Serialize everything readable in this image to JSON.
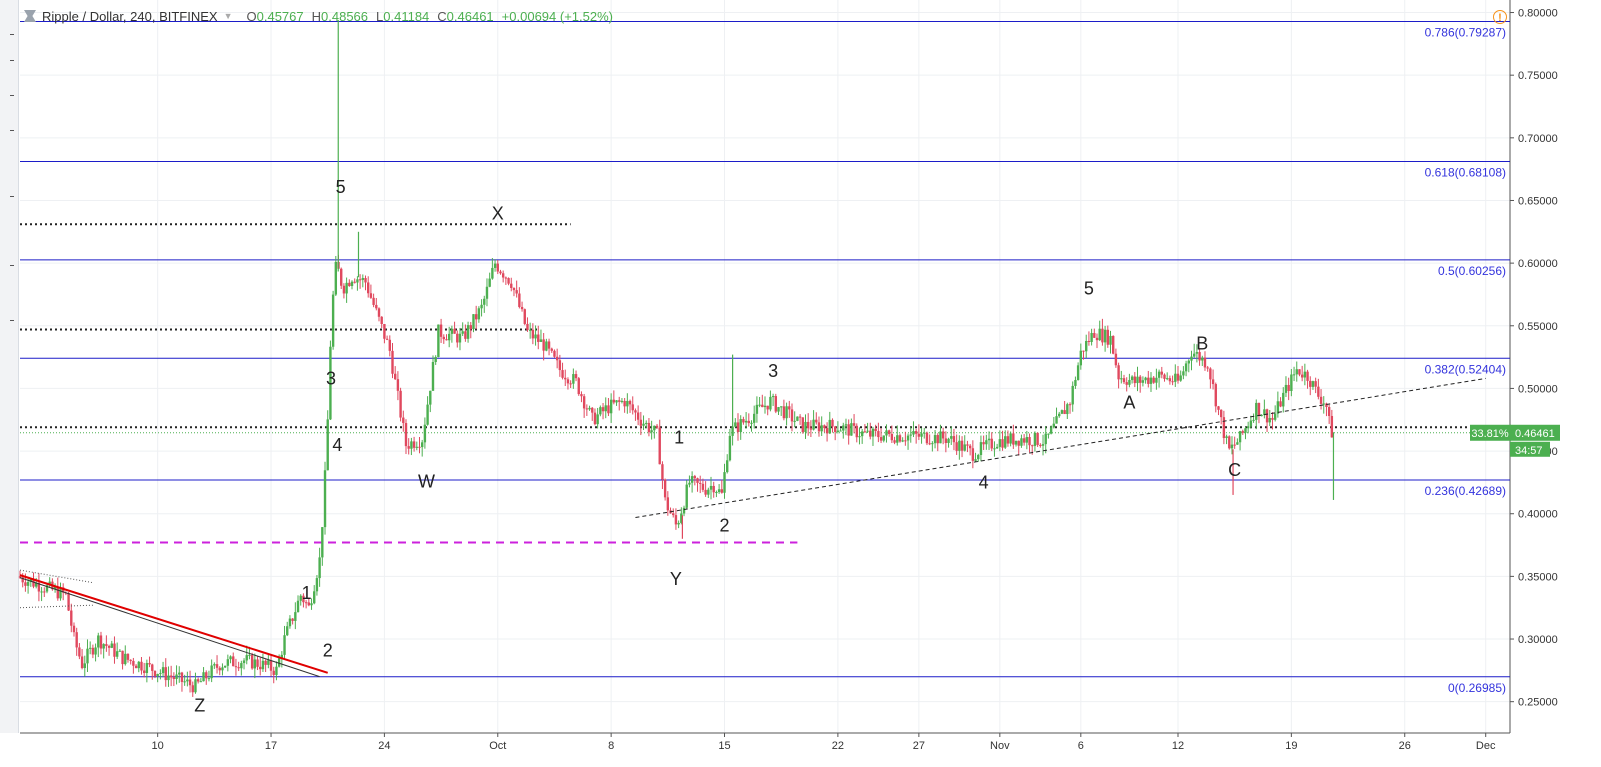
{
  "header": {
    "symbol": "Ripple / Dollar, 240, BITFINEX",
    "open_label": "O",
    "open": "0.45767",
    "high_label": "H",
    "high": "0.48566",
    "low_label": "L",
    "low": "0.41184",
    "close_label": "C",
    "close": "0.46461",
    "change": "+0.00694 (+1.52%)"
  },
  "colors": {
    "up": "#4caf50",
    "down": "#e0485e",
    "fib": "#1c1cc8",
    "accent": "#f7931a"
  },
  "chart_data": {
    "type": "candlestick",
    "ylim": [
      0.225,
      0.81
    ],
    "y_ticks": [
      "0.80000",
      "0.75000",
      "0.70000",
      "0.65000",
      "0.60000",
      "0.55000",
      "0.50000",
      "0.45000",
      "0.40000",
      "0.35000",
      "0.30000",
      "0.25000"
    ],
    "y_tick_values": [
      0.8,
      0.75,
      0.7,
      0.65,
      0.6,
      0.55,
      0.5,
      0.45,
      0.4,
      0.35,
      0.3,
      0.25
    ],
    "x_ticks": [
      "10",
      "17",
      "24",
      "Oct",
      "8",
      "15",
      "22",
      "27",
      "Nov",
      "6",
      "12",
      "19",
      "26",
      "Dec"
    ],
    "x_tick_days": [
      10,
      17,
      24,
      31,
      38,
      45,
      52,
      57,
      62,
      67,
      73,
      80,
      87,
      92
    ],
    "x_range_days": [
      1.5,
      93.5
    ],
    "fib_levels": [
      {
        "label": "0.786(0.79287)",
        "value": 0.79287
      },
      {
        "label": "0.618(0.68108)",
        "value": 0.68108
      },
      {
        "label": "0.5(0.60256)",
        "value": 0.60256
      },
      {
        "label": "0.382(0.52404)",
        "value": 0.52404
      },
      {
        "label": "0.236(0.42689)",
        "value": 0.42689
      },
      {
        "label": "0(0.26985)",
        "value": 0.26985
      }
    ],
    "dotted_levels": [
      {
        "value": 0.631,
        "from": 1.5,
        "to": 35.5
      },
      {
        "value": 0.547,
        "from": 1.5,
        "to": 33.5
      },
      {
        "value": 0.469,
        "from": 1.5,
        "to": 93.5
      }
    ],
    "magenta_level": {
      "value": 0.377,
      "from": 1.5,
      "to": 49.5
    },
    "current_price": {
      "value": 0.46461,
      "label": "0.46461",
      "pct": "33.81%",
      "timer": "34:57"
    },
    "wave_labels": [
      {
        "text": "5",
        "day": 21.3,
        "price": 0.656
      },
      {
        "text": "X",
        "day": 31,
        "price": 0.635
      },
      {
        "text": "3",
        "day": 20.7,
        "price": 0.503
      },
      {
        "text": "4",
        "day": 21.1,
        "price": 0.45
      },
      {
        "text": "W",
        "day": 26.6,
        "price": 0.421
      },
      {
        "text": "1",
        "day": 19.2,
        "price": 0.332
      },
      {
        "text": "2",
        "day": 20.5,
        "price": 0.286
      },
      {
        "text": "Z",
        "day": 12.6,
        "price": 0.242
      },
      {
        "text": "1",
        "day": 42.2,
        "price": 0.456
      },
      {
        "text": "2",
        "day": 45,
        "price": 0.386
      },
      {
        "text": "Y",
        "day": 42,
        "price": 0.343
      },
      {
        "text": "3",
        "day": 48,
        "price": 0.509
      },
      {
        "text": "4",
        "day": 61,
        "price": 0.42
      },
      {
        "text": "5",
        "day": 67.5,
        "price": 0.575
      },
      {
        "text": "A",
        "day": 70,
        "price": 0.484
      },
      {
        "text": "B",
        "day": 74.5,
        "price": 0.531
      },
      {
        "text": "C",
        "day": 76.5,
        "price": 0.43
      }
    ],
    "trendlines": [
      {
        "style": "red",
        "from": [
          1.5,
          0.351
        ],
        "to": [
          20.5,
          0.273
        ]
      },
      {
        "style": "dark",
        "from": [
          1.5,
          0.349
        ],
        "to": [
          20,
          0.27
        ]
      },
      {
        "style": "dotted-thin",
        "from": [
          1.5,
          0.355
        ],
        "to": [
          6,
          0.345
        ]
      },
      {
        "style": "dotted-thin",
        "from": [
          1.5,
          0.325
        ],
        "to": [
          6,
          0.327
        ]
      },
      {
        "style": "dashed",
        "from": [
          39.5,
          0.397
        ],
        "to": [
          92,
          0.508
        ]
      }
    ],
    "anchors": [
      [
        1.5,
        0.35
      ],
      [
        3.5,
        0.34
      ],
      [
        4.5,
        0.335
      ],
      [
        5,
        0.3
      ],
      [
        5.5,
        0.28
      ],
      [
        6.5,
        0.3
      ],
      [
        8,
        0.285
      ],
      [
        9.5,
        0.278
      ],
      [
        11,
        0.27
      ],
      [
        12.5,
        0.262
      ],
      [
        14,
        0.28
      ],
      [
        15.5,
        0.283
      ],
      [
        16.5,
        0.28
      ],
      [
        17.5,
        0.275
      ],
      [
        18,
        0.3
      ],
      [
        19,
        0.335
      ],
      [
        19.5,
        0.325
      ],
      [
        20.2,
        0.365
      ],
      [
        20.6,
        0.45
      ],
      [
        20.9,
        0.56
      ],
      [
        21.2,
        0.6
      ],
      [
        21.6,
        0.58
      ],
      [
        22.2,
        0.59
      ],
      [
        23,
        0.585
      ],
      [
        24.5,
        0.53
      ],
      [
        25.5,
        0.455
      ],
      [
        26.5,
        0.46
      ],
      [
        27.5,
        0.545
      ],
      [
        29,
        0.54
      ],
      [
        30.2,
        0.565
      ],
      [
        31,
        0.6
      ],
      [
        32,
        0.585
      ],
      [
        33,
        0.545
      ],
      [
        34,
        0.535
      ],
      [
        35,
        0.515
      ],
      [
        36,
        0.505
      ],
      [
        37,
        0.475
      ],
      [
        38,
        0.485
      ],
      [
        39,
        0.49
      ],
      [
        40,
        0.475
      ],
      [
        41,
        0.463
      ],
      [
        41.5,
        0.41
      ],
      [
        42.2,
        0.39
      ],
      [
        43,
        0.425
      ],
      [
        44,
        0.42
      ],
      [
        44.5,
        0.423
      ],
      [
        45,
        0.415
      ],
      [
        45.5,
        0.465
      ],
      [
        46.5,
        0.475
      ],
      [
        48,
        0.49
      ],
      [
        49,
        0.48
      ],
      [
        50,
        0.47
      ],
      [
        52,
        0.47
      ],
      [
        54,
        0.463
      ],
      [
        57,
        0.462
      ],
      [
        59,
        0.46
      ],
      [
        60.5,
        0.448
      ],
      [
        62,
        0.458
      ],
      [
        63.5,
        0.46
      ],
      [
        65,
        0.458
      ],
      [
        66.5,
        0.49
      ],
      [
        67.2,
        0.53
      ],
      [
        68,
        0.545
      ],
      [
        69,
        0.54
      ],
      [
        69.5,
        0.51
      ],
      [
        70.5,
        0.505
      ],
      [
        72,
        0.51
      ],
      [
        73.2,
        0.505
      ],
      [
        74,
        0.53
      ],
      [
        75,
        0.52
      ],
      [
        75.7,
        0.48
      ],
      [
        76.3,
        0.45
      ],
      [
        77,
        0.46
      ],
      [
        78,
        0.485
      ],
      [
        79,
        0.475
      ],
      [
        79.7,
        0.495
      ],
      [
        80.5,
        0.515
      ],
      [
        81.2,
        0.51
      ],
      [
        81.8,
        0.495
      ],
      [
        82.3,
        0.488
      ],
      [
        82.6,
        0.465
      ]
    ],
    "spikes": [
      {
        "day": 21.15,
        "high": 0.794
      },
      {
        "day": 22.4,
        "high": 0.625
      },
      {
        "day": 45.5,
        "high": 0.527
      },
      {
        "day": 76.4,
        "low": 0.415
      },
      {
        "day": 82.6,
        "low": 0.411
      },
      {
        "day": 42.4,
        "low": 0.38
      }
    ]
  }
}
